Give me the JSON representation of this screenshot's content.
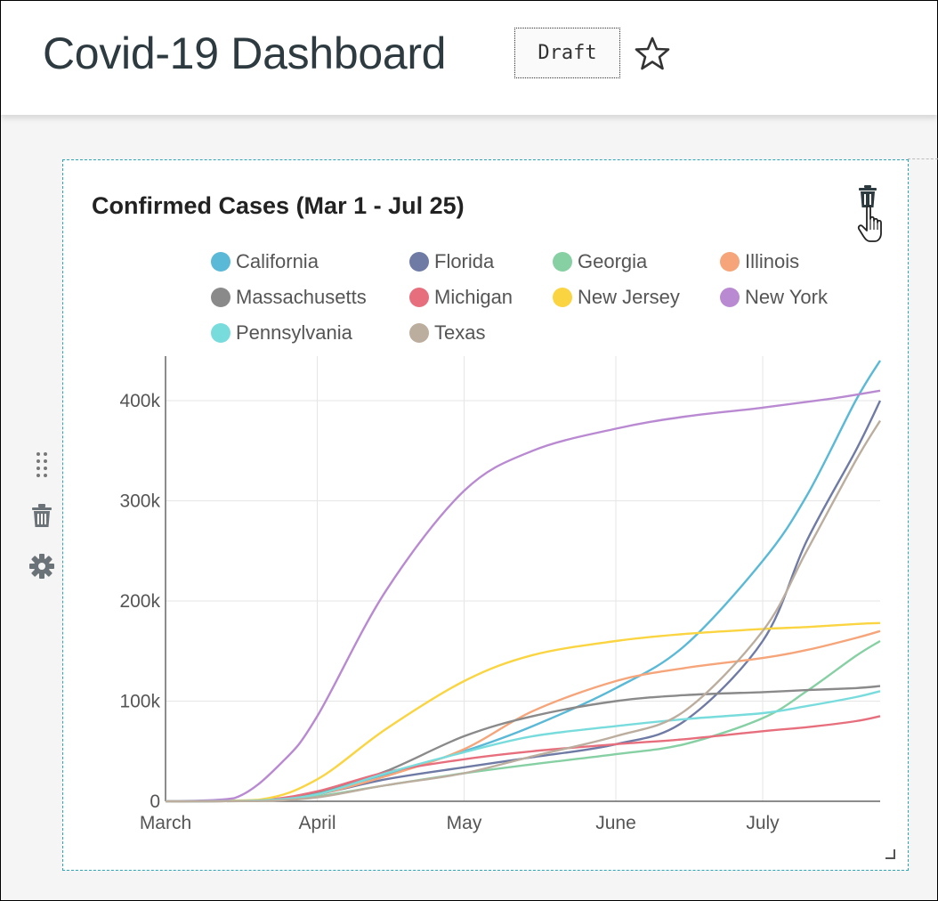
{
  "header": {
    "title": "Covid-19 Dashboard",
    "badge": "Draft",
    "favorite_icon": "star-outline-icon"
  },
  "side_toolbar": {
    "icons": [
      "drag-handle-icon",
      "trash-icon",
      "gear-icon"
    ]
  },
  "card": {
    "delete_icon": "trash-icon",
    "cursor_icon": "pointer-hand-icon",
    "resize_icon": "resize-handle-icon"
  },
  "chart_data": {
    "type": "line",
    "title": "Confirmed Cases (Mar 1 - Jul 25)",
    "x_ticks": [
      "March",
      "April",
      "May",
      "June",
      "July"
    ],
    "x_range": [
      "2020-03-01",
      "2020-07-25"
    ],
    "ylim": [
      0,
      440000
    ],
    "y_ticks": [
      0,
      100000,
      200000,
      300000,
      400000
    ],
    "y_tick_labels": [
      "0",
      "100k",
      "200k",
      "300k",
      "400k"
    ],
    "grid": true,
    "legend_position": "top",
    "series": [
      {
        "name": "California",
        "color": "#5ab9d6",
        "dates": [
          "2020-03-01",
          "2020-03-20",
          "2020-04-01",
          "2020-04-15",
          "2020-05-01",
          "2020-05-15",
          "2020-06-01",
          "2020-06-15",
          "2020-07-01",
          "2020-07-10",
          "2020-07-20",
          "2020-07-25"
        ],
        "values": [
          0,
          1000,
          9000,
          27000,
          50000,
          75000,
          113000,
          155000,
          240000,
          305000,
          400000,
          440000
        ]
      },
      {
        "name": "Florida",
        "color": "#6f7ba5",
        "dates": [
          "2020-03-01",
          "2020-03-20",
          "2020-04-01",
          "2020-04-15",
          "2020-05-01",
          "2020-05-15",
          "2020-06-01",
          "2020-06-15",
          "2020-07-01",
          "2020-07-10",
          "2020-07-20",
          "2020-07-25"
        ],
        "values": [
          0,
          500,
          7000,
          22000,
          34000,
          44000,
          57000,
          80000,
          160000,
          260000,
          350000,
          400000
        ]
      },
      {
        "name": "Georgia",
        "color": "#86d0a4",
        "dates": [
          "2020-03-01",
          "2020-03-20",
          "2020-04-01",
          "2020-04-15",
          "2020-05-01",
          "2020-05-15",
          "2020-06-01",
          "2020-06-15",
          "2020-07-01",
          "2020-07-10",
          "2020-07-20",
          "2020-07-25"
        ],
        "values": [
          0,
          300,
          5000,
          16000,
          28000,
          37000,
          47000,
          57000,
          83000,
          110000,
          145000,
          160000
        ]
      },
      {
        "name": "Illinois",
        "color": "#f6a57a",
        "dates": [
          "2020-03-01",
          "2020-03-20",
          "2020-04-01",
          "2020-04-15",
          "2020-05-01",
          "2020-05-15",
          "2020-06-01",
          "2020-06-15",
          "2020-07-01",
          "2020-07-10",
          "2020-07-20",
          "2020-07-25"
        ],
        "values": [
          0,
          600,
          7000,
          25000,
          52000,
          90000,
          120000,
          133000,
          143000,
          151000,
          163000,
          170000
        ]
      },
      {
        "name": "Massachusetts",
        "color": "#8a8a8a",
        "dates": [
          "2020-03-01",
          "2020-03-20",
          "2020-04-01",
          "2020-04-15",
          "2020-05-01",
          "2020-05-15",
          "2020-06-01",
          "2020-06-15",
          "2020-07-01",
          "2020-07-10",
          "2020-07-20",
          "2020-07-25"
        ],
        "values": [
          0,
          400,
          8000,
          30000,
          65000,
          85000,
          100000,
          106000,
          109000,
          111000,
          113000,
          115000
        ]
      },
      {
        "name": "Michigan",
        "color": "#e76f7d",
        "dates": [
          "2020-03-01",
          "2020-03-20",
          "2020-04-01",
          "2020-04-15",
          "2020-05-01",
          "2020-05-15",
          "2020-06-01",
          "2020-06-15",
          "2020-07-01",
          "2020-07-10",
          "2020-07-20",
          "2020-07-25"
        ],
        "values": [
          0,
          1000,
          10000,
          29000,
          42000,
          50000,
          57000,
          62000,
          70000,
          74000,
          80000,
          85000
        ]
      },
      {
        "name": "New Jersey",
        "color": "#fad541",
        "dates": [
          "2020-03-01",
          "2020-03-20",
          "2020-04-01",
          "2020-04-15",
          "2020-05-01",
          "2020-05-15",
          "2020-06-01",
          "2020-06-15",
          "2020-07-01",
          "2020-07-10",
          "2020-07-20",
          "2020-07-25"
        ],
        "values": [
          0,
          1500,
          22000,
          72000,
          120000,
          146000,
          160000,
          167000,
          172000,
          174000,
          177000,
          178000
        ]
      },
      {
        "name": "New York",
        "color": "#b98ad2",
        "dates": [
          "2020-03-01",
          "2020-03-15",
          "2020-03-25",
          "2020-04-01",
          "2020-04-15",
          "2020-05-01",
          "2020-05-15",
          "2020-06-01",
          "2020-06-15",
          "2020-07-01",
          "2020-07-15",
          "2020-07-25"
        ],
        "values": [
          0,
          3000,
          40000,
          85000,
          210000,
          310000,
          350000,
          372000,
          384000,
          393000,
          402000,
          410000
        ]
      },
      {
        "name": "Pennsylvania",
        "color": "#79dcdc",
        "dates": [
          "2020-03-01",
          "2020-03-20",
          "2020-04-01",
          "2020-04-15",
          "2020-05-01",
          "2020-05-15",
          "2020-06-01",
          "2020-06-15",
          "2020-07-01",
          "2020-07-10",
          "2020-07-20",
          "2020-07-25"
        ],
        "values": [
          0,
          800,
          7000,
          28000,
          49000,
          65000,
          75000,
          82000,
          88000,
          95000,
          104000,
          110000
        ]
      },
      {
        "name": "Texas",
        "color": "#bcae9e",
        "dates": [
          "2020-03-01",
          "2020-03-20",
          "2020-04-01",
          "2020-04-15",
          "2020-05-01",
          "2020-05-15",
          "2020-06-01",
          "2020-06-15",
          "2020-07-01",
          "2020-07-10",
          "2020-07-20",
          "2020-07-25"
        ],
        "values": [
          0,
          300,
          4000,
          16000,
          28000,
          45000,
          65000,
          90000,
          170000,
          250000,
          340000,
          380000
        ]
      }
    ]
  }
}
